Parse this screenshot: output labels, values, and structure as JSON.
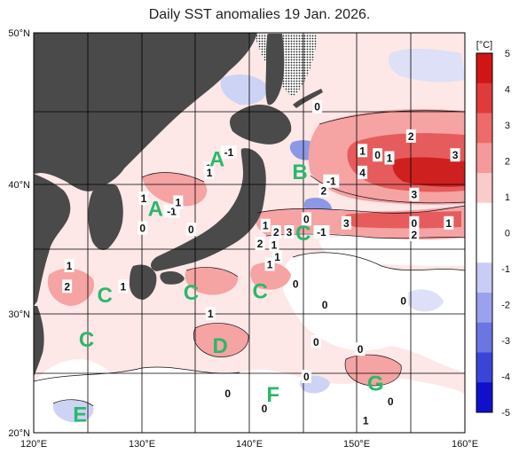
{
  "title": "Daily SST anomalies 19 Jan. 2026.",
  "lat_labels": [
    "50°N",
    "40°N",
    "30°N",
    "20°N"
  ],
  "lon_labels": [
    "120°E",
    "130°E",
    "140°E",
    "150°E",
    "160°E"
  ],
  "colorbar": {
    "unit": "[°C]",
    "ticks": [
      "5",
      "4",
      "3",
      "2",
      "1",
      "0",
      "-1",
      "-2",
      "-3",
      "-4",
      "-5"
    ],
    "colors": [
      "#d11515",
      "#e03a3a",
      "#ef6a6a",
      "#f59a9a",
      "#fbcaca",
      "#ffffff",
      "#ffffff",
      "#c9cdf5",
      "#9aa2ee",
      "#6b76e3",
      "#3a45d8",
      "#1010cc"
    ]
  },
  "zones": [
    {
      "id": "A",
      "lon": 137.0,
      "lat": 41.8
    },
    {
      "id": "A",
      "lon": 131.3,
      "lat": 38.2
    },
    {
      "id": "B",
      "lon": 144.7,
      "lat": 40.9
    },
    {
      "id": "C",
      "lon": 145.0,
      "lat": 36.3
    },
    {
      "id": "C",
      "lon": 126.6,
      "lat": 31.5
    },
    {
      "id": "C",
      "lon": 134.6,
      "lat": 31.7
    },
    {
      "id": "C",
      "lon": 141.0,
      "lat": 31.8
    },
    {
      "id": "C",
      "lon": 124.9,
      "lat": 27.9
    },
    {
      "id": "D",
      "lon": 137.3,
      "lat": 27.4
    },
    {
      "id": "E",
      "lon": 124.3,
      "lat": 21.6
    },
    {
      "id": "F",
      "lon": 142.2,
      "lat": 23.3
    },
    {
      "id": "G",
      "lon": 151.7,
      "lat": 24.2
    }
  ],
  "contour_labels": [
    {
      "t": "-1",
      "lon": 138.1,
      "lat": 42.2
    },
    {
      "t": "1",
      "lon": 136.2,
      "lat": 41.1
    },
    {
      "t": "1",
      "lon": 136.3,
      "lat": 40.8
    },
    {
      "t": "1",
      "lon": 130.2,
      "lat": 38.9
    },
    {
      "t": "-1",
      "lon": 132.8,
      "lat": 37.9
    },
    {
      "t": "1",
      "lon": 133.4,
      "lat": 38.6
    },
    {
      "t": "0",
      "lon": 134.6,
      "lat": 36.5
    },
    {
      "t": "0",
      "lon": 130.1,
      "lat": 36.6
    },
    {
      "t": "0",
      "lon": 146.3,
      "lat": 45.3
    },
    {
      "t": "1",
      "lon": 150.5,
      "lat": 42.3
    },
    {
      "t": "0",
      "lon": 151.9,
      "lat": 42.0
    },
    {
      "t": "1",
      "lon": 153.0,
      "lat": 41.8
    },
    {
      "t": "2",
      "lon": 155.0,
      "lat": 43.3
    },
    {
      "t": "3",
      "lon": 159.1,
      "lat": 42.0
    },
    {
      "t": "4",
      "lon": 150.5,
      "lat": 40.8
    },
    {
      "t": "-1",
      "lon": 147.6,
      "lat": 40.2
    },
    {
      "t": "2",
      "lon": 146.9,
      "lat": 39.5
    },
    {
      "t": "3",
      "lon": 155.3,
      "lat": 39.2
    },
    {
      "t": "0",
      "lon": 145.3,
      "lat": 37.3
    },
    {
      "t": "3",
      "lon": 149.0,
      "lat": 37.0
    },
    {
      "t": "0",
      "lon": 155.3,
      "lat": 37.0
    },
    {
      "t": "1",
      "lon": 158.5,
      "lat": 37.0
    },
    {
      "t": "2",
      "lon": 155.3,
      "lat": 36.1
    },
    {
      "t": "1",
      "lon": 141.5,
      "lat": 36.8
    },
    {
      "t": "2",
      "lon": 142.5,
      "lat": 36.3
    },
    {
      "t": "3",
      "lon": 143.7,
      "lat": 36.3
    },
    {
      "t": "-1",
      "lon": 146.7,
      "lat": 36.3
    },
    {
      "t": "2",
      "lon": 141.0,
      "lat": 35.4
    },
    {
      "t": "1",
      "lon": 142.3,
      "lat": 35.3
    },
    {
      "t": "1",
      "lon": 142.6,
      "lat": 34.4
    },
    {
      "t": "1",
      "lon": 141.9,
      "lat": 33.8
    },
    {
      "t": "1",
      "lon": 123.3,
      "lat": 33.7
    },
    {
      "t": "2",
      "lon": 123.1,
      "lat": 32.1
    },
    {
      "t": "1",
      "lon": 128.3,
      "lat": 32.1
    },
    {
      "t": "0",
      "lon": 144.3,
      "lat": 32.3
    },
    {
      "t": "0",
      "lon": 147.0,
      "lat": 30.7
    },
    {
      "t": "0",
      "lon": 154.3,
      "lat": 31.0
    },
    {
      "t": "1",
      "lon": 136.4,
      "lat": 30.0
    },
    {
      "t": "0",
      "lon": 146.2,
      "lat": 27.6
    },
    {
      "t": "0",
      "lon": 150.3,
      "lat": 27.0
    },
    {
      "t": "0",
      "lon": 145.3,
      "lat": 24.7
    },
    {
      "t": "0",
      "lon": 138.0,
      "lat": 23.3
    },
    {
      "t": "0",
      "lon": 141.4,
      "lat": 22.0
    },
    {
      "t": "0",
      "lon": 153.1,
      "lat": 22.6
    },
    {
      "t": "1",
      "lon": 150.8,
      "lat": 21.0
    }
  ],
  "colors": {
    "land": "#4a4a4a",
    "ocean_neutral": "#ffffff",
    "warm1": "#fbd6d6",
    "warm2": "#f5a3a3",
    "warm3": "#e65c5c",
    "warm4": "#cf2020",
    "cool1": "#cdd3f4",
    "cool2": "#8c98e6",
    "zone_label": "#2bb86a",
    "grid": "#000000"
  }
}
